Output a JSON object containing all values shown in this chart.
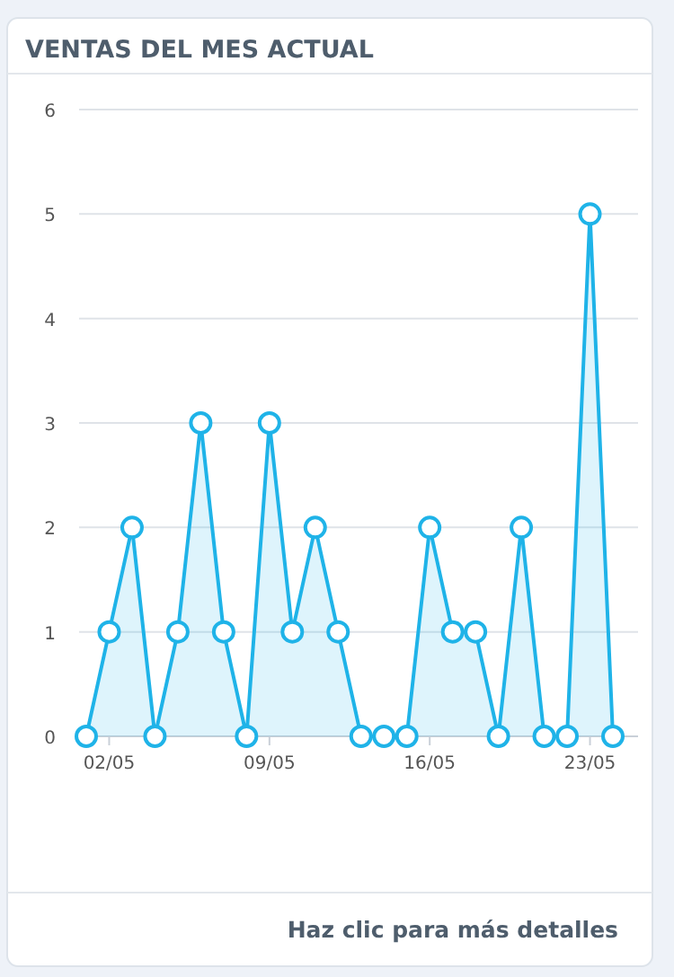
{
  "chart_data": {
    "type": "area",
    "title": "VENTAS DEL MES ACTUAL",
    "categories": [
      null,
      "02/05",
      null,
      null,
      null,
      null,
      null,
      null,
      "09/05",
      null,
      null,
      null,
      null,
      null,
      null,
      "16/05",
      null,
      null,
      null,
      null,
      null,
      null,
      "23/05",
      null
    ],
    "series": [
      {
        "color": "#1fb3e8",
        "values": [
          0,
          1,
          2,
          0,
          1,
          3,
          1,
          0,
          3,
          1,
          2,
          1,
          0,
          0,
          0,
          2,
          1,
          1,
          0,
          2,
          0,
          0,
          5,
          0
        ]
      }
    ],
    "ylim": [
      0,
      6
    ],
    "yticks": [
      0,
      1,
      2,
      3,
      4,
      5,
      6
    ],
    "grid": "y",
    "marker": "circle",
    "annotations": [
      "Haz clic para más detalles"
    ]
  }
}
